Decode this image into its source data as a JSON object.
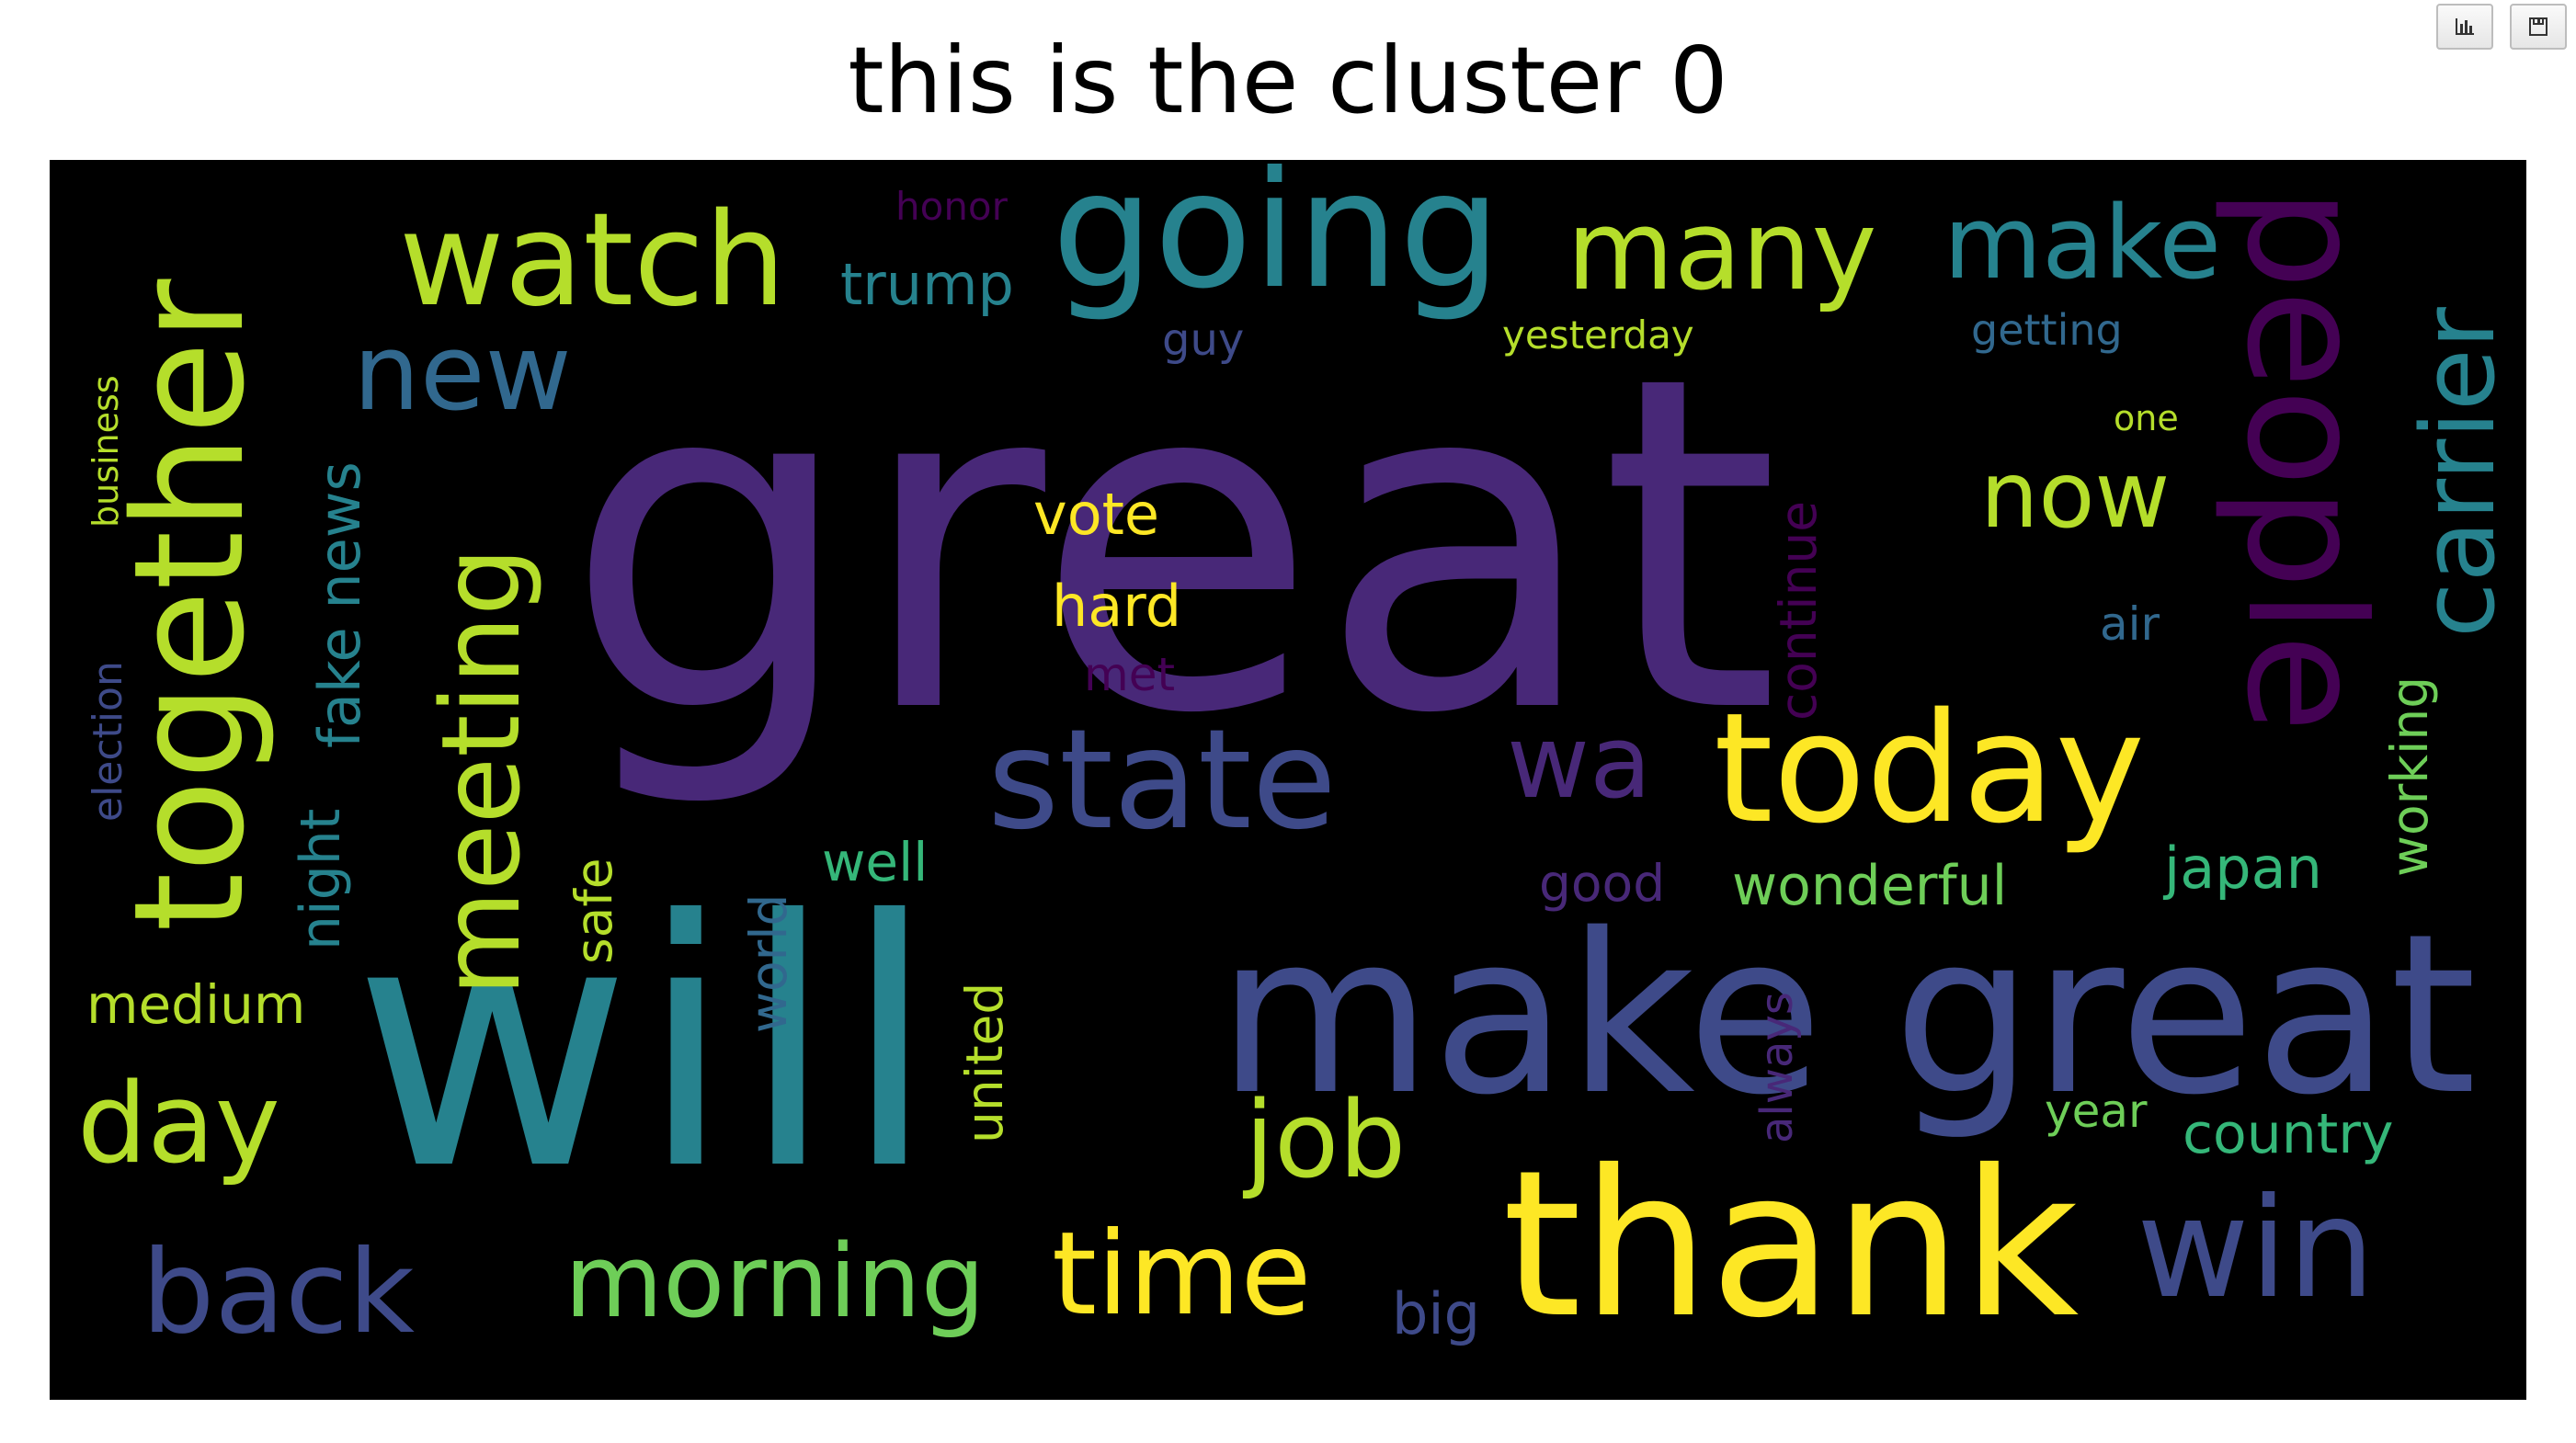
{
  "title": "this is the cluster 0",
  "toolbar": {
    "chart_icon": "bar-chart-icon",
    "save_icon": "save-icon"
  },
  "palette": {
    "purple": "#482878",
    "darkpurple": "#440154",
    "indigo": "#3e4a89",
    "blue": "#31688e",
    "teal": "#26828e",
    "green": "#35b779",
    "lime": "#6ece58",
    "yellowgreen": "#b5de2b",
    "yellow": "#fde725"
  },
  "words": {
    "great": "great",
    "will": "will",
    "make_great": "make great",
    "thank": "thank",
    "going": "going",
    "state": "state",
    "today": "today",
    "people": "people",
    "make": "make",
    "watch": "watch",
    "many": "many",
    "together": "together",
    "meeting": "meeting",
    "win": "win",
    "time": "time",
    "back": "back",
    "morning": "morning",
    "job": "job",
    "day": "day",
    "new": "new",
    "now": "now",
    "carrier": "carrier",
    "wa": "wa",
    "trump": "trump",
    "wonderful": "wonderful",
    "country": "country",
    "japan": "japan",
    "hard": "hard",
    "vote": "vote",
    "fake_news": "fake news",
    "night": "night",
    "working": "working",
    "medium": "medium",
    "well": "well",
    "big": "big",
    "good": "good",
    "yesterday": "yesterday",
    "getting": "getting",
    "guy": "guy",
    "honor": "honor",
    "year": "year",
    "united": "united",
    "world": "world",
    "safe": "safe",
    "continue": "continue",
    "election": "election",
    "business": "business",
    "air": "air",
    "met": "met",
    "one": "one",
    "always": "always"
  }
}
